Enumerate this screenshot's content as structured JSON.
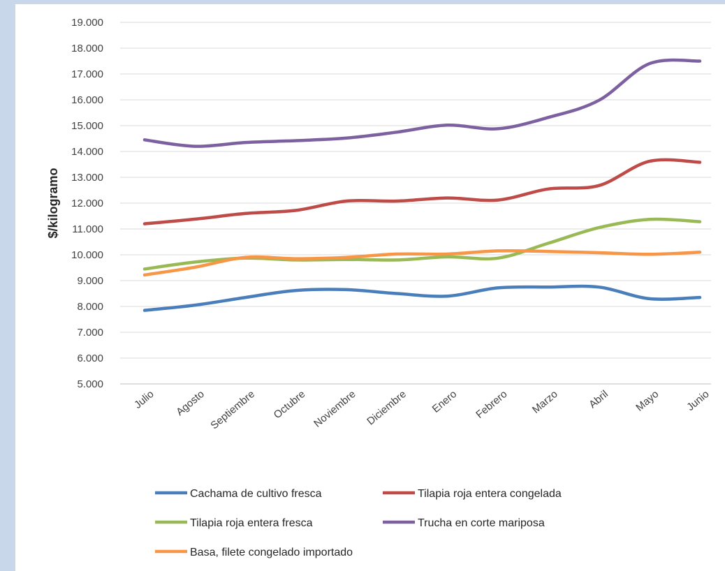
{
  "chart_data": {
    "type": "line",
    "title": "",
    "xlabel": "",
    "ylabel": "$/kilogramo",
    "categories": [
      "Julio",
      "Agosto",
      "Septiembre",
      "Octubre",
      "Noviembre",
      "Diciembre",
      "Enero",
      "Febrero",
      "Marzo",
      "Abril",
      "Mayo",
      "Junio"
    ],
    "ylim": [
      5000,
      19000
    ],
    "ystep": 1000,
    "ytick_labels": [
      "5.000",
      "6.000",
      "7.000",
      "8.000",
      "9.000",
      "10.000",
      "11.000",
      "12.000",
      "13.000",
      "14.000",
      "15.000",
      "16.000",
      "17.000",
      "18.000",
      "19.000"
    ],
    "grid": "horizontal",
    "legend_position": "bottom",
    "series": [
      {
        "name": "Cachama de cultivo fresca",
        "color": "#4a7ebb",
        "values": [
          7850,
          8050,
          8350,
          8620,
          8650,
          8500,
          8400,
          8720,
          8750,
          8750,
          8300,
          8350
        ]
      },
      {
        "name": "Tilapia roja entera congelada",
        "color": "#be4b48",
        "values": [
          11200,
          11380,
          11600,
          11720,
          12080,
          12080,
          12200,
          12120,
          12550,
          12680,
          13620,
          13580
        ]
      },
      {
        "name": "Tilapia roja entera fresca",
        "color": "#98b954",
        "values": [
          9450,
          9720,
          9870,
          9800,
          9820,
          9800,
          9920,
          9870,
          10450,
          11050,
          11370,
          11280
        ]
      },
      {
        "name": "Trucha en corte mariposa",
        "color": "#7d60a0",
        "values": [
          14450,
          14200,
          14350,
          14420,
          14520,
          14750,
          15020,
          14880,
          15320,
          15980,
          17400,
          17500
        ]
      },
      {
        "name": "Basa, filete congelado importado",
        "color": "#f79646",
        "values": [
          9220,
          9520,
          9900,
          9850,
          9900,
          10030,
          10030,
          10150,
          10130,
          10080,
          10020,
          10100
        ]
      }
    ]
  }
}
